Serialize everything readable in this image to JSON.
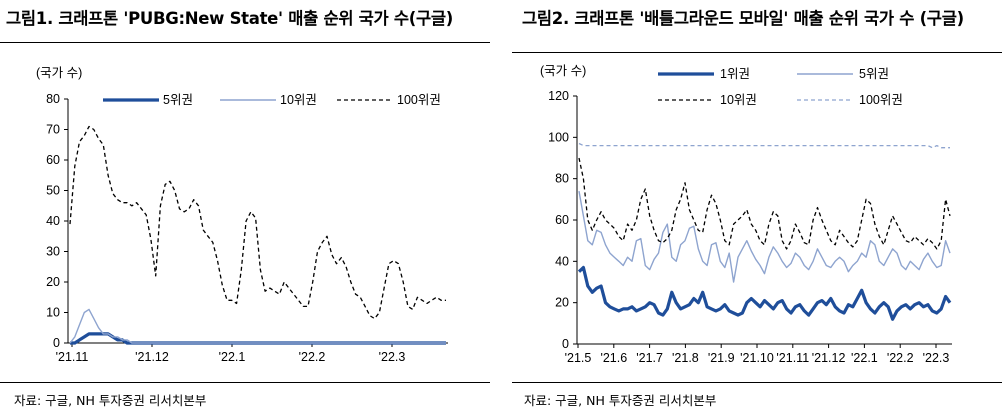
{
  "chart_data": [
    {
      "type": "line",
      "title": "그림1. 크래프톤 'PUBG:New State' 매출 순위 국가 수(구글)",
      "ylabel": "(국가 수)",
      "ylim": [
        0,
        80
      ],
      "yticks": [
        0,
        10,
        20,
        30,
        40,
        50,
        60,
        70,
        80
      ],
      "x_tick_labels": [
        "'21.11",
        "'21.12",
        "'22.1",
        "'22.2",
        "'22.3"
      ],
      "x_start": "2021-11-01",
      "x_end": "2022-03-20",
      "legend": "top",
      "series": [
        {
          "name": "5위권",
          "color": "#1f4e9a",
          "style": "thick",
          "values": [
            0,
            0,
            1,
            2,
            3,
            3,
            3,
            3,
            3,
            2,
            1,
            1,
            0,
            0,
            0,
            0,
            0,
            0,
            0,
            0,
            0,
            0,
            0,
            0,
            0,
            0,
            0,
            0,
            0,
            0,
            0,
            0,
            0,
            0,
            0,
            0,
            0,
            0,
            0,
            0,
            0,
            0,
            0,
            0,
            0,
            0,
            0,
            0,
            0,
            0,
            0,
            0,
            0,
            0,
            0,
            0,
            0,
            0,
            0,
            0,
            0,
            0,
            0,
            0,
            0,
            0,
            0,
            0,
            0,
            0,
            0,
            0,
            0,
            0,
            0,
            0,
            0,
            0,
            0,
            0
          ]
        },
        {
          "name": "10위권",
          "color": "#8ea4cf",
          "style": "thin",
          "values": [
            0,
            2,
            6,
            10,
            11,
            8,
            5,
            3,
            3,
            2,
            2,
            1,
            1,
            0,
            0,
            0,
            0,
            0,
            0,
            0,
            0,
            0,
            0,
            0,
            0,
            0,
            0,
            0,
            0,
            0,
            0,
            0,
            0,
            0,
            0,
            0,
            0,
            0,
            0,
            0,
            0,
            0,
            0,
            0,
            0,
            0,
            0,
            0,
            0,
            0,
            0,
            0,
            0,
            0,
            0,
            0,
            0,
            0,
            0,
            0,
            0,
            0,
            0,
            0,
            0,
            0,
            0,
            0,
            0,
            0,
            0,
            0,
            0,
            0,
            0,
            0,
            0,
            0,
            0,
            0
          ]
        },
        {
          "name": "100위권",
          "color": "#000000",
          "style": "dashed",
          "values": [
            39,
            58,
            66,
            68,
            71,
            70,
            67,
            65,
            55,
            49,
            47,
            46,
            46,
            45,
            46,
            44,
            42,
            34,
            22,
            45,
            52,
            53,
            50,
            44,
            43,
            44,
            47,
            45,
            37,
            35,
            33,
            27,
            19,
            14,
            14,
            13,
            24,
            40,
            43,
            41,
            24,
            17,
            18,
            17,
            16,
            20,
            18,
            16,
            14,
            12,
            12,
            20,
            30,
            33,
            35,
            29,
            26,
            28,
            25,
            20,
            16,
            15,
            12,
            9,
            8,
            10,
            18,
            26,
            27,
            26,
            20,
            12,
            11,
            15,
            14,
            13,
            14,
            15,
            14,
            14
          ]
        }
      ]
    },
    {
      "type": "line",
      "title": "그림2. 크래프톤 '배틀그라운드 모바일' 매출 순위 국가 수 (구글)",
      "ylabel": "(국가 수)",
      "ylim": [
        0,
        120
      ],
      "yticks": [
        0,
        20,
        40,
        60,
        80,
        100,
        120
      ],
      "x_tick_labels": [
        "'21.5",
        "'21.6",
        "'21.7",
        "'21.8",
        "'21.9",
        "'21.10",
        "'21.11",
        "'21.12",
        "'22.1",
        "'22.2",
        "'22.3"
      ],
      "x_start": "2021-05-01",
      "x_end": "2022-03-20",
      "legend": "top",
      "series": [
        {
          "name": "1위권",
          "color": "#1f4e9a",
          "style": "thick",
          "values": [
            35,
            37,
            28,
            25,
            27,
            28,
            20,
            18,
            17,
            16,
            17,
            17,
            18,
            16,
            17,
            18,
            20,
            19,
            15,
            14,
            17,
            25,
            20,
            17,
            18,
            19,
            22,
            20,
            25,
            18,
            17,
            16,
            17,
            19,
            16,
            15,
            14,
            15,
            20,
            22,
            20,
            18,
            21,
            19,
            17,
            20,
            21,
            17,
            15,
            18,
            19,
            16,
            14,
            17,
            20,
            21,
            19,
            22,
            18,
            16,
            15,
            19,
            18,
            22,
            26,
            20,
            17,
            15,
            18,
            20,
            18,
            12,
            16,
            18,
            19,
            17,
            19,
            20,
            18,
            19,
            16,
            15,
            17,
            23,
            20
          ]
        },
        {
          "name": "5위권",
          "color": "#8ea4cf",
          "style": "thin",
          "values": [
            74,
            62,
            50,
            48,
            55,
            54,
            48,
            44,
            42,
            40,
            38,
            42,
            40,
            50,
            51,
            38,
            36,
            41,
            44,
            54,
            58,
            42,
            40,
            48,
            50,
            56,
            57,
            46,
            40,
            38,
            48,
            49,
            40,
            37,
            44,
            30,
            42,
            46,
            50,
            45,
            41,
            38,
            34,
            42,
            47,
            44,
            40,
            37,
            39,
            44,
            42,
            38,
            36,
            40,
            46,
            42,
            38,
            37,
            40,
            42,
            40,
            35,
            38,
            40,
            44,
            42,
            50,
            48,
            40,
            38,
            42,
            46,
            44,
            38,
            36,
            40,
            38,
            36,
            41,
            44,
            40,
            37,
            38,
            50,
            44
          ]
        },
        {
          "name": "10위권",
          "color": "#000000",
          "style": "dashed",
          "values": [
            90,
            80,
            60,
            55,
            60,
            64,
            60,
            58,
            56,
            52,
            50,
            58,
            55,
            60,
            70,
            75,
            62,
            55,
            50,
            49,
            51,
            55,
            65,
            70,
            78,
            65,
            60,
            55,
            54,
            65,
            72,
            68,
            60,
            50,
            48,
            58,
            60,
            62,
            65,
            58,
            55,
            50,
            48,
            58,
            64,
            62,
            50,
            46,
            50,
            58,
            54,
            49,
            48,
            60,
            66,
            60,
            55,
            50,
            48,
            55,
            52,
            49,
            47,
            50,
            60,
            70,
            68,
            58,
            52,
            48,
            55,
            62,
            58,
            54,
            50,
            49,
            52,
            50,
            48,
            51,
            49,
            46,
            50,
            70,
            62
          ]
        },
        {
          "name": "100위권",
          "color": "#8ea4cf",
          "style": "dashed",
          "values": [
            97,
            96,
            96,
            96,
            96,
            96,
            96,
            96,
            96,
            96,
            96,
            96,
            96,
            96,
            96,
            96,
            96,
            96,
            96,
            96,
            96,
            96,
            96,
            96,
            96,
            96,
            96,
            96,
            96,
            96,
            96,
            96,
            96,
            96,
            96,
            96,
            96,
            96,
            96,
            96,
            96,
            96,
            96,
            96,
            96,
            96,
            96,
            96,
            96,
            96,
            96,
            96,
            96,
            96,
            96,
            96,
            96,
            96,
            96,
            96,
            96,
            96,
            96,
            96,
            96,
            96,
            96,
            96,
            96,
            96,
            96,
            96,
            96,
            96,
            96,
            96,
            96,
            96,
            96,
            96,
            95,
            96,
            95,
            95,
            95
          ]
        }
      ]
    }
  ],
  "source1": "자료: 구글, NH 투자증권 리서치본부",
  "source2": "자료: 구글, NH 투자증권 리서치본부"
}
